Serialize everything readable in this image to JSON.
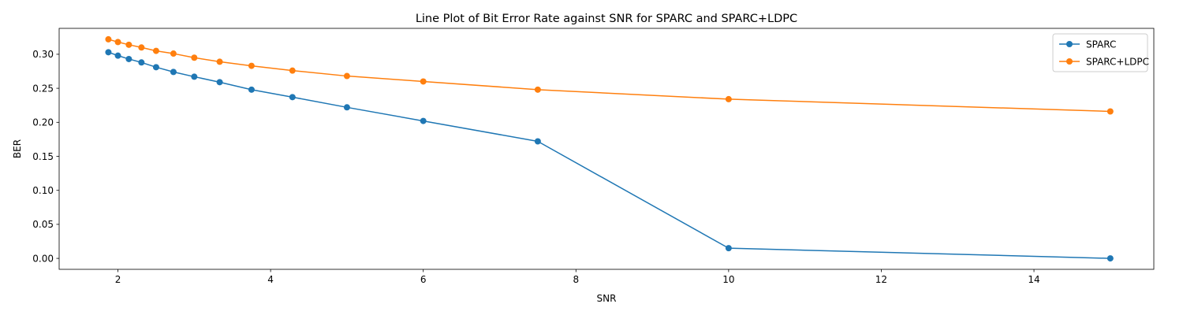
{
  "chart_data": {
    "type": "line",
    "title": "Line Plot of Bit Error Rate against SNR for SPARC and SPARC+LDPC",
    "xlabel": "SNR",
    "ylabel": "BER",
    "xlim": [
      1.23,
      15.57
    ],
    "ylim": [
      -0.0161,
      0.3381
    ],
    "x_ticks": [
      2,
      4,
      6,
      8,
      10,
      12,
      14
    ],
    "y_ticks": [
      0.0,
      0.05,
      0.1,
      0.15,
      0.2,
      0.25,
      0.3
    ],
    "x_tick_labels": [
      "2",
      "4",
      "6",
      "8",
      "10",
      "12",
      "14"
    ],
    "y_tick_labels": [
      "0.00",
      "0.05",
      "0.10",
      "0.15",
      "0.20",
      "0.25",
      "0.30"
    ],
    "grid": false,
    "legend_position": "top-right",
    "x": [
      1.875,
      2.0,
      2.143,
      2.308,
      2.5,
      2.727,
      3.0,
      3.333,
      3.75,
      4.286,
      5.0,
      6.0,
      7.5,
      10.0,
      15.0
    ],
    "series": [
      {
        "name": "SPARC",
        "color": "#1f77b4",
        "marker": "circle",
        "values": [
          0.303,
          0.298,
          0.293,
          0.288,
          0.281,
          0.274,
          0.267,
          0.259,
          0.248,
          0.237,
          0.222,
          0.202,
          0.172,
          0.015,
          0.0
        ]
      },
      {
        "name": "SPARC+LDPC",
        "color": "#ff7f0e",
        "marker": "circle",
        "values": [
          0.322,
          0.318,
          0.314,
          0.31,
          0.305,
          0.301,
          0.295,
          0.289,
          0.283,
          0.276,
          0.268,
          0.26,
          0.248,
          0.234,
          0.216
        ]
      }
    ]
  }
}
